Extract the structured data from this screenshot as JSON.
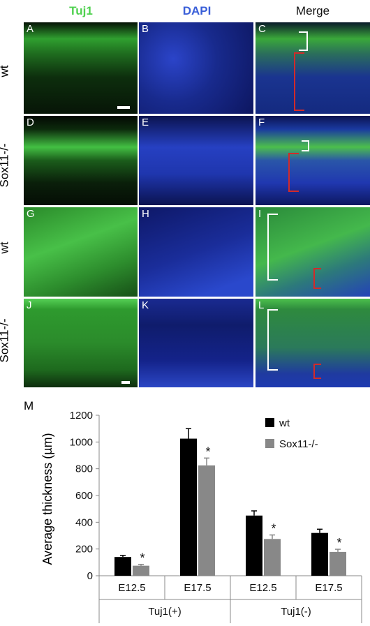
{
  "figure": {
    "columns": [
      "Tuj1",
      "DAPI",
      "Merge"
    ],
    "column_colors": [
      "#4fd14f",
      "#3a5fd8",
      "#111111"
    ],
    "rows": [
      "wt",
      "Sox11-/-",
      "wt",
      "Sox11-/-"
    ],
    "panel_labels": [
      "A",
      "B",
      "C",
      "D",
      "E",
      "F",
      "G",
      "H",
      "I",
      "J",
      "K",
      "L"
    ]
  },
  "chart_data": {
    "type": "bar",
    "panel_label": "M",
    "ylabel": "Average thickness (µm)",
    "ylim": [
      0,
      1200
    ],
    "yticks": [
      0,
      200,
      400,
      600,
      800,
      1000,
      1200
    ],
    "categories": [
      "E12.5",
      "E17.5",
      "E12.5",
      "E17.5"
    ],
    "groups": [
      {
        "label": "Tuj1(+)",
        "categories": [
          "E12.5",
          "E17.5"
        ]
      },
      {
        "label": "Tuj1(-)",
        "categories": [
          "E12.5",
          "E17.5"
        ]
      }
    ],
    "series": [
      {
        "name": "wt",
        "color": "#000000",
        "values": [
          140,
          1025,
          450,
          320
        ],
        "errors": [
          12,
          75,
          35,
          28
        ]
      },
      {
        "name": "Sox11-/-",
        "color": "#888888",
        "values": [
          75,
          825,
          275,
          178
        ],
        "errors": [
          10,
          55,
          30,
          20
        ]
      }
    ],
    "significance": [
      false,
      true,
      false,
      true,
      false,
      true,
      false,
      true
    ],
    "significance_marker": "*",
    "legend_position": "top-right",
    "grid": false
  }
}
